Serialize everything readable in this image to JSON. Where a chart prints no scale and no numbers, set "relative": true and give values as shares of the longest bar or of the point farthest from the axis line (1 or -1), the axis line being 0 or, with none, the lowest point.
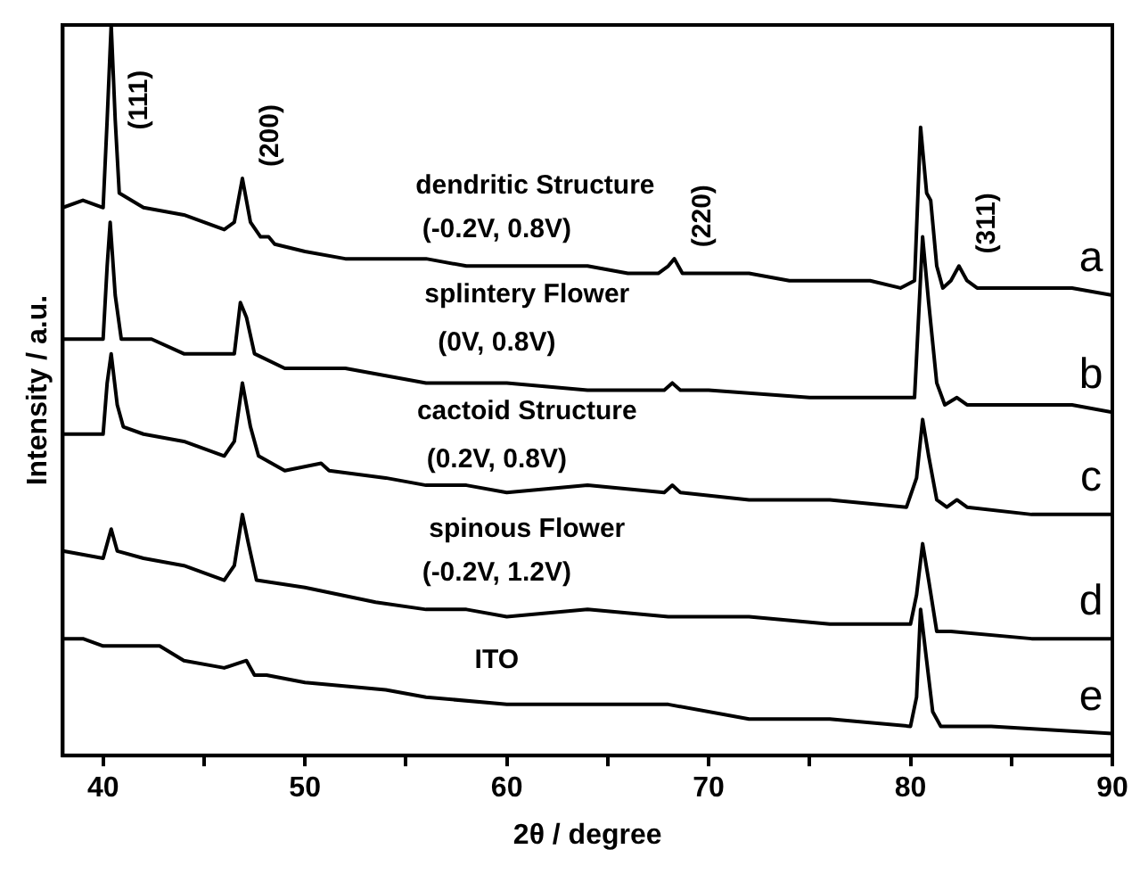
{
  "chart_data": {
    "type": "line",
    "xlabel": "2θ / degree",
    "ylabel": "Intensity / a.u.",
    "relative": true,
    "grid": false,
    "legend": false,
    "marker": "none",
    "line_style": "solid",
    "xlim": [
      38,
      90
    ],
    "xticks": [
      40,
      {
        "value": 45,
        "label": null
      },
      50,
      {
        "value": 55,
        "label": null
      },
      60,
      {
        "value": 65,
        "label": null
      },
      70,
      {
        "value": 75,
        "label": null
      },
      80,
      {
        "value": 85,
        "label": null
      },
      90
    ],
    "annotations": [
      {
        "text": "(111)",
        "x": 40.4,
        "y": 1
      },
      {
        "text": "(200)",
        "x": 46.9,
        "y": 0.79
      },
      {
        "text": "(220)",
        "x": 68.3,
        "y": 0.68
      },
      {
        "text": "(311)",
        "x": 82.4,
        "y": 0.67
      },
      "dendritic Structure",
      "(-0.2V, 0.8V)",
      "splintery Flower",
      "(0V, 0.8V)",
      "cactoid Structure",
      "(0.2V, 0.8V)",
      "spinous Flower",
      "(-0.2V, 1.2V)",
      "ITO"
    ],
    "series": [
      {
        "name": "a",
        "color": "#000000",
        "x": [
          38,
          39,
          40,
          40.2,
          40.4,
          40.6,
          40.8,
          42,
          44,
          46,
          46.5,
          46.9,
          47.3,
          47.8,
          48.2,
          48.5,
          50,
          52,
          54,
          56,
          58,
          60,
          62,
          64,
          66,
          67.5,
          68,
          68.3,
          68.7,
          70,
          72,
          74,
          76,
          78,
          79.5,
          80.2,
          80.5,
          80.8,
          81,
          81.3,
          81.6,
          82,
          82.4,
          82.8,
          83.3,
          85,
          87,
          88,
          90
        ],
        "values": [
          0.75,
          0.76,
          0.75,
          0.87,
          1,
          0.87,
          0.77,
          0.75,
          0.74,
          0.72,
          0.73,
          0.79,
          0.73,
          0.71,
          0.71,
          0.7,
          0.69,
          0.68,
          0.68,
          0.68,
          0.67,
          0.67,
          0.67,
          0.67,
          0.66,
          0.66,
          0.67,
          0.68,
          0.66,
          0.66,
          0.66,
          0.65,
          0.65,
          0.65,
          0.64,
          0.65,
          0.86,
          0.77,
          0.76,
          0.67,
          0.64,
          0.65,
          0.67,
          0.65,
          0.64,
          0.64,
          0.64,
          0.64,
          0.63
        ]
      },
      {
        "name": "b",
        "color": "#000000",
        "x": [
          38,
          40,
          40.2,
          40.35,
          40.6,
          40.9,
          42,
          42.4,
          44,
          46,
          46.5,
          46.8,
          47.1,
          47.5,
          49,
          52,
          54,
          56,
          58,
          60,
          64,
          67.8,
          68.2,
          68.6,
          70,
          75,
          79.5,
          80.2,
          80.6,
          80.9,
          81.3,
          81.7,
          82.3,
          82.8,
          85,
          88,
          90
        ],
        "values": [
          0.57,
          0.57,
          0.67,
          0.73,
          0.63,
          0.57,
          0.57,
          0.57,
          0.55,
          0.55,
          0.55,
          0.62,
          0.6,
          0.55,
          0.53,
          0.53,
          0.52,
          0.51,
          0.51,
          0.51,
          0.5,
          0.5,
          0.51,
          0.5,
          0.5,
          0.49,
          0.49,
          0.49,
          0.71,
          0.62,
          0.51,
          0.48,
          0.49,
          0.48,
          0.48,
          0.48,
          0.47
        ]
      },
      {
        "name": "c",
        "color": "#000000",
        "x": [
          38,
          40,
          40.2,
          40.4,
          40.7,
          41,
          42,
          44,
          46,
          46.5,
          46.9,
          47.3,
          47.7,
          49,
          50.8,
          51.2,
          54,
          56,
          58,
          60,
          64,
          67.8,
          68.2,
          68.6,
          72,
          76,
          79.8,
          80.3,
          80.6,
          80.9,
          81.3,
          81.8,
          82.3,
          82.8,
          86,
          90
        ],
        "values": [
          0.44,
          0.44,
          0.51,
          0.55,
          0.48,
          0.45,
          0.44,
          0.43,
          0.41,
          0.43,
          0.51,
          0.45,
          0.41,
          0.39,
          0.4,
          0.39,
          0.38,
          0.37,
          0.37,
          0.36,
          0.37,
          0.36,
          0.37,
          0.36,
          0.35,
          0.35,
          0.34,
          0.38,
          0.46,
          0.41,
          0.35,
          0.34,
          0.35,
          0.34,
          0.33,
          0.33
        ]
      },
      {
        "name": "d",
        "color": "#000000",
        "x": [
          38,
          40,
          40.4,
          40.7,
          42,
          44,
          46,
          46.5,
          46.9,
          47.2,
          47.6,
          50,
          53.5,
          56,
          58,
          60,
          64,
          68,
          72,
          76,
          80,
          80.3,
          80.6,
          80.9,
          81.3,
          82,
          86,
          90
        ],
        "values": [
          0.28,
          0.27,
          0.31,
          0.28,
          0.27,
          0.26,
          0.24,
          0.26,
          0.33,
          0.29,
          0.24,
          0.23,
          0.21,
          0.2,
          0.2,
          0.19,
          0.2,
          0.19,
          0.19,
          0.18,
          0.18,
          0.22,
          0.29,
          0.24,
          0.17,
          0.17,
          0.16,
          0.16
        ]
      },
      {
        "name": "e",
        "color": "#000000",
        "x": [
          38,
          39,
          40,
          42,
          42.8,
          44,
          46,
          47.1,
          47.5,
          48.1,
          50,
          54,
          56,
          60,
          64,
          68,
          72,
          76,
          80,
          80.3,
          80.5,
          80.8,
          81.1,
          81.5,
          84,
          90
        ],
        "values": [
          0.16,
          0.16,
          0.15,
          0.15,
          0.15,
          0.13,
          0.12,
          0.13,
          0.11,
          0.11,
          0.1,
          0.09,
          0.08,
          0.07,
          0.07,
          0.07,
          0.05,
          0.05,
          0.04,
          0.08,
          0.2,
          0.13,
          0.06,
          0.04,
          0.04,
          0.03
        ]
      }
    ]
  }
}
